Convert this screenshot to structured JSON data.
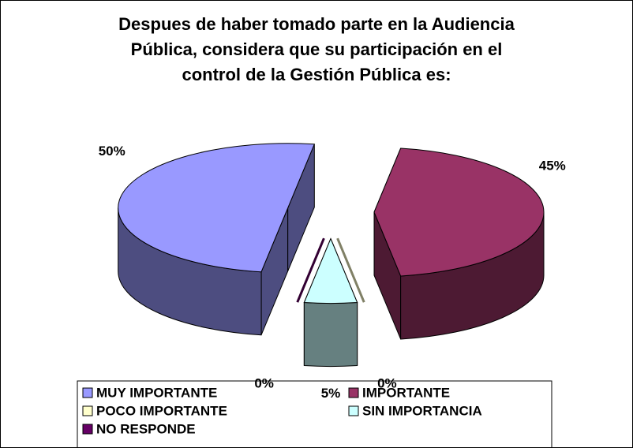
{
  "chart_data": {
    "type": "pie3d",
    "title": "Despues de haber tomado parte en la Audiencia Pública, considera que su participación en el control de la Gestión Pública es:",
    "categories": [
      "MUY IMPORTANTE",
      "IMPORTANTE",
      "POCO IMPORTANTE",
      "SIN IMPORTANCIA",
      "NO RESPONDE"
    ],
    "values": [
      50,
      45,
      0,
      5,
      0
    ],
    "value_labels": [
      "50%",
      "45%",
      "0%",
      "5%",
      "0%"
    ],
    "colors": [
      "#9999ff",
      "#993366",
      "#ffffcc",
      "#ccffff",
      "#660066"
    ],
    "legend": "bottom"
  }
}
